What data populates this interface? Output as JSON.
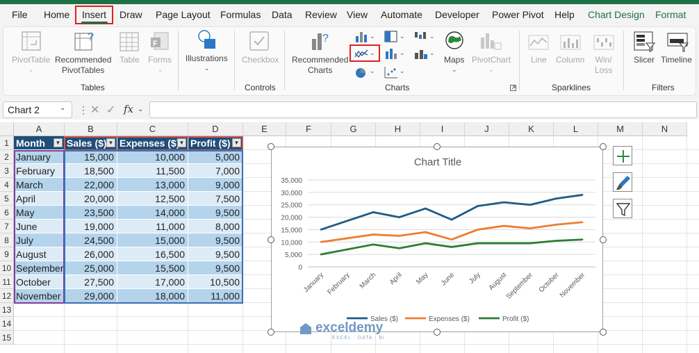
{
  "ribbon_tabs": [
    "File",
    "Home",
    "Insert",
    "Draw",
    "Page Layout",
    "Formulas",
    "Data",
    "Review",
    "View",
    "Automate",
    "Developer",
    "Power Pivot",
    "Help",
    "Chart Design",
    "Format"
  ],
  "ribbon": {
    "pivottable": "PivotTable",
    "recommended_pivottables_1": "Recommended",
    "recommended_pivottables_2": "PivotTables",
    "table": "Table",
    "forms": "Forms",
    "tables_group": "Tables",
    "illustrations": "Illustrations",
    "checkbox": "Checkbox",
    "controls_group": "Controls",
    "recommended_charts_1": "Recommended",
    "recommended_charts_2": "Charts",
    "maps": "Maps",
    "pivotchart": "PivotChart",
    "charts_group": "Charts",
    "line": "Line",
    "column": "Column",
    "winloss_1": "Win/",
    "winloss_2": "Loss",
    "sparklines_group": "Sparklines",
    "slicer": "Slicer",
    "timeline": "Timeline",
    "filters_group": "Filters"
  },
  "formula_bar": {
    "name_box": "Chart 2",
    "fx": "fx"
  },
  "columns": [
    "A",
    "B",
    "C",
    "D",
    "E",
    "F",
    "G",
    "H",
    "I",
    "J",
    "K",
    "L",
    "M",
    "N"
  ],
  "rows": [
    "1",
    "2",
    "3",
    "4",
    "5",
    "6",
    "7",
    "8",
    "9",
    "10",
    "11",
    "12",
    "13",
    "14",
    "15"
  ],
  "table": {
    "headers": [
      "Month",
      "Sales ($)",
      "Expenses ($)",
      "Profit ($)"
    ],
    "rows": [
      [
        "January",
        "15,000",
        "10,000",
        "5,000"
      ],
      [
        "February",
        "18,500",
        "11,500",
        "7,000"
      ],
      [
        "March",
        "22,000",
        "13,000",
        "9,000"
      ],
      [
        "April",
        "20,000",
        "12,500",
        "7,500"
      ],
      [
        "May",
        "23,500",
        "14,000",
        "9,500"
      ],
      [
        "June",
        "19,000",
        "11,000",
        "8,000"
      ],
      [
        "July",
        "24,500",
        "15,000",
        "9,500"
      ],
      [
        "August",
        "26,000",
        "16,500",
        "9,500"
      ],
      [
        "September",
        "25,000",
        "15,500",
        "9,500"
      ],
      [
        "October",
        "27,500",
        "17,000",
        "10,500"
      ],
      [
        "November",
        "29,000",
        "18,000",
        "11,000"
      ]
    ]
  },
  "chart_data": {
    "type": "line",
    "title": "Chart Title",
    "categories": [
      "January",
      "February",
      "March",
      "April",
      "May",
      "June",
      "July",
      "August",
      "September",
      "October",
      "November"
    ],
    "series": [
      {
        "name": "Sales ($)",
        "color": "#1f5a84",
        "values": [
          15000,
          18500,
          22000,
          20000,
          23500,
          19000,
          24500,
          26000,
          25000,
          27500,
          29000
        ]
      },
      {
        "name": "Expenses ($)",
        "color": "#ed7d31",
        "values": [
          10000,
          11500,
          13000,
          12500,
          14000,
          11000,
          15000,
          16500,
          15500,
          17000,
          18000
        ]
      },
      {
        "name": "Profit ($)",
        "color": "#2e7d32",
        "values": [
          5000,
          7000,
          9000,
          7500,
          9500,
          8000,
          9500,
          9500,
          9500,
          10500,
          11000
        ]
      }
    ],
    "y_ticks": [
      "0",
      "5,000",
      "10,000",
      "15,000",
      "20,000",
      "25,000",
      "30,000",
      "35,000"
    ],
    "ylim": [
      0,
      35000
    ],
    "grid": true,
    "legend": "bottom"
  },
  "watermark": {
    "brand": "exceldemy",
    "tagline": "EXCEL · DATA · BI"
  }
}
